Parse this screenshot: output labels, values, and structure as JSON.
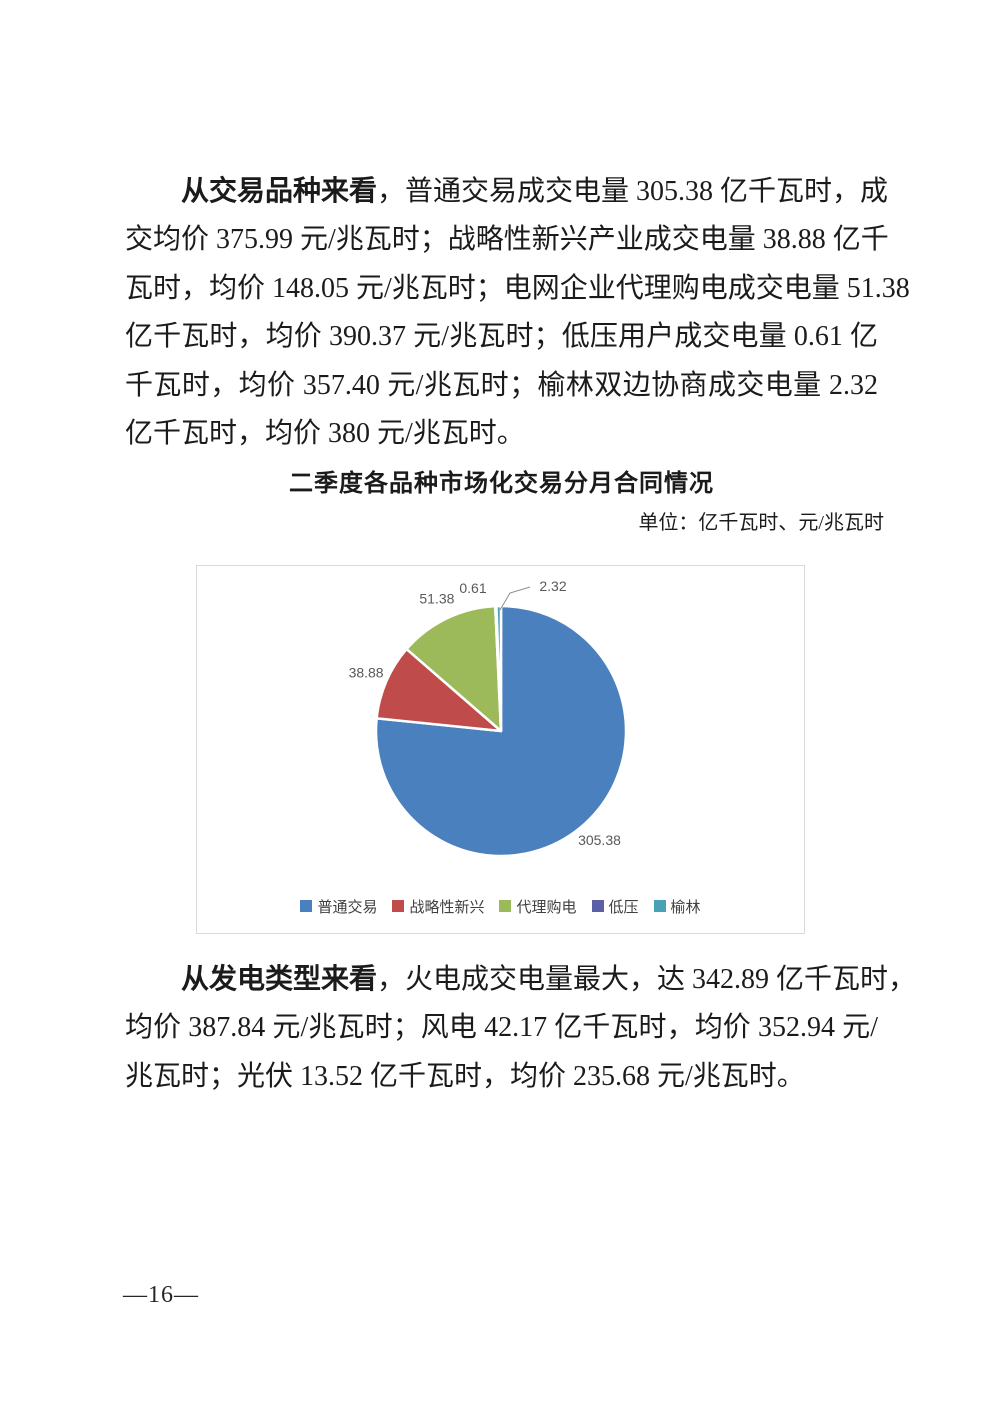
{
  "paragraph1": {
    "lead": "从交易品种来看",
    "lines": [
      "，普通交易成交电量 305.38 亿千瓦时，成",
      "交均价 375.99 元/兆瓦时；战略性新兴产业成交电量 38.88 亿千",
      "瓦时，均价 148.05 元/兆瓦时；电网企业代理购电成交电量 51.38",
      "亿千瓦时，均价 390.37 元/兆瓦时；低压用户成交电量 0.61 亿",
      "千瓦时，均价 357.40 元/兆瓦时；榆林双边协商成交电量 2.32",
      "亿千瓦时，均价 380 元/兆瓦时。"
    ]
  },
  "chart": {
    "title": "二季度各品种市场化交易分月合同情况",
    "unit_note": "单位：亿千瓦时、元/兆瓦时"
  },
  "chart_data": {
    "type": "pie",
    "title": "二季度各品种市场化交易分月合同情况",
    "unit": "亿千瓦时、元/兆瓦时",
    "categories": [
      "普通交易",
      "战略性新兴",
      "代理购电",
      "低压",
      "榆林"
    ],
    "values": [
      305.38,
      38.88,
      51.38,
      0.61,
      2.32
    ],
    "labels": [
      "305.38",
      "38.88",
      "51.38",
      "0.61",
      "2.32"
    ],
    "colors": [
      "#4a80bd",
      "#bf4c4a",
      "#9cba5a",
      "#5c5ea6",
      "#4aa0b5"
    ],
    "avg_prices": [
      375.99,
      148.05,
      390.37,
      357.4,
      380
    ],
    "start_angle_deg": 0,
    "direction": "clockwise",
    "legend_position": "bottom"
  },
  "paragraph2": {
    "lead": "从发电类型来看",
    "lines": [
      "，火电成交电量最大，达 342.89 亿千瓦时，",
      "均价 387.84 元/兆瓦时；风电 42.17 亿千瓦时，均价 352.94 元/",
      "兆瓦时；光伏 13.52 亿千瓦时，均价 235.68 元/兆瓦时。"
    ]
  },
  "page": {
    "number": "—16—"
  }
}
